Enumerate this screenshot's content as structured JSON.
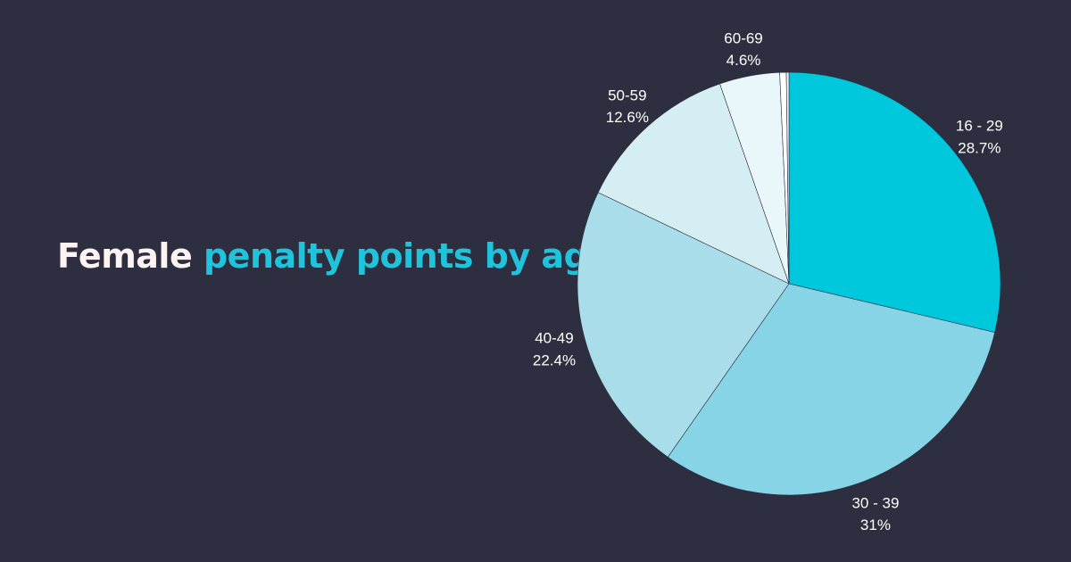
{
  "title": {
    "part1": "Female",
    "part2": "penalty points by age"
  },
  "colors": {
    "background": "#2d2e40",
    "title_white": "#fdf3f3",
    "title_accent": "#1fc4dc",
    "slice_border": "#2d2e40"
  },
  "chart_data": {
    "type": "pie",
    "title": "Female penalty points by age",
    "start_angle": "12 o'clock",
    "direction": "clockwise",
    "legend": "none",
    "slices": [
      {
        "label": "16 - 29",
        "value": 28.7,
        "value_label": "28.7%",
        "color": "#00c8dc"
      },
      {
        "label": "30 - 39",
        "value": 31,
        "value_label": "31%",
        "color": "#86d4e6"
      },
      {
        "label": "40-49",
        "value": 22.4,
        "value_label": "22.4%",
        "color": "#a9dde9"
      },
      {
        "label": "50-59",
        "value": 12.6,
        "value_label": "12.6%",
        "color": "#d4eef3"
      },
      {
        "label": "60-69",
        "value": 4.6,
        "value_label": "4.6%",
        "color": "#e9f6fa"
      },
      {
        "label": "",
        "value": 0.5,
        "value_label": "",
        "color": "#ffffff"
      },
      {
        "label": "",
        "value": 0.2,
        "value_label": "",
        "color": "#f3f3f3"
      }
    ]
  }
}
